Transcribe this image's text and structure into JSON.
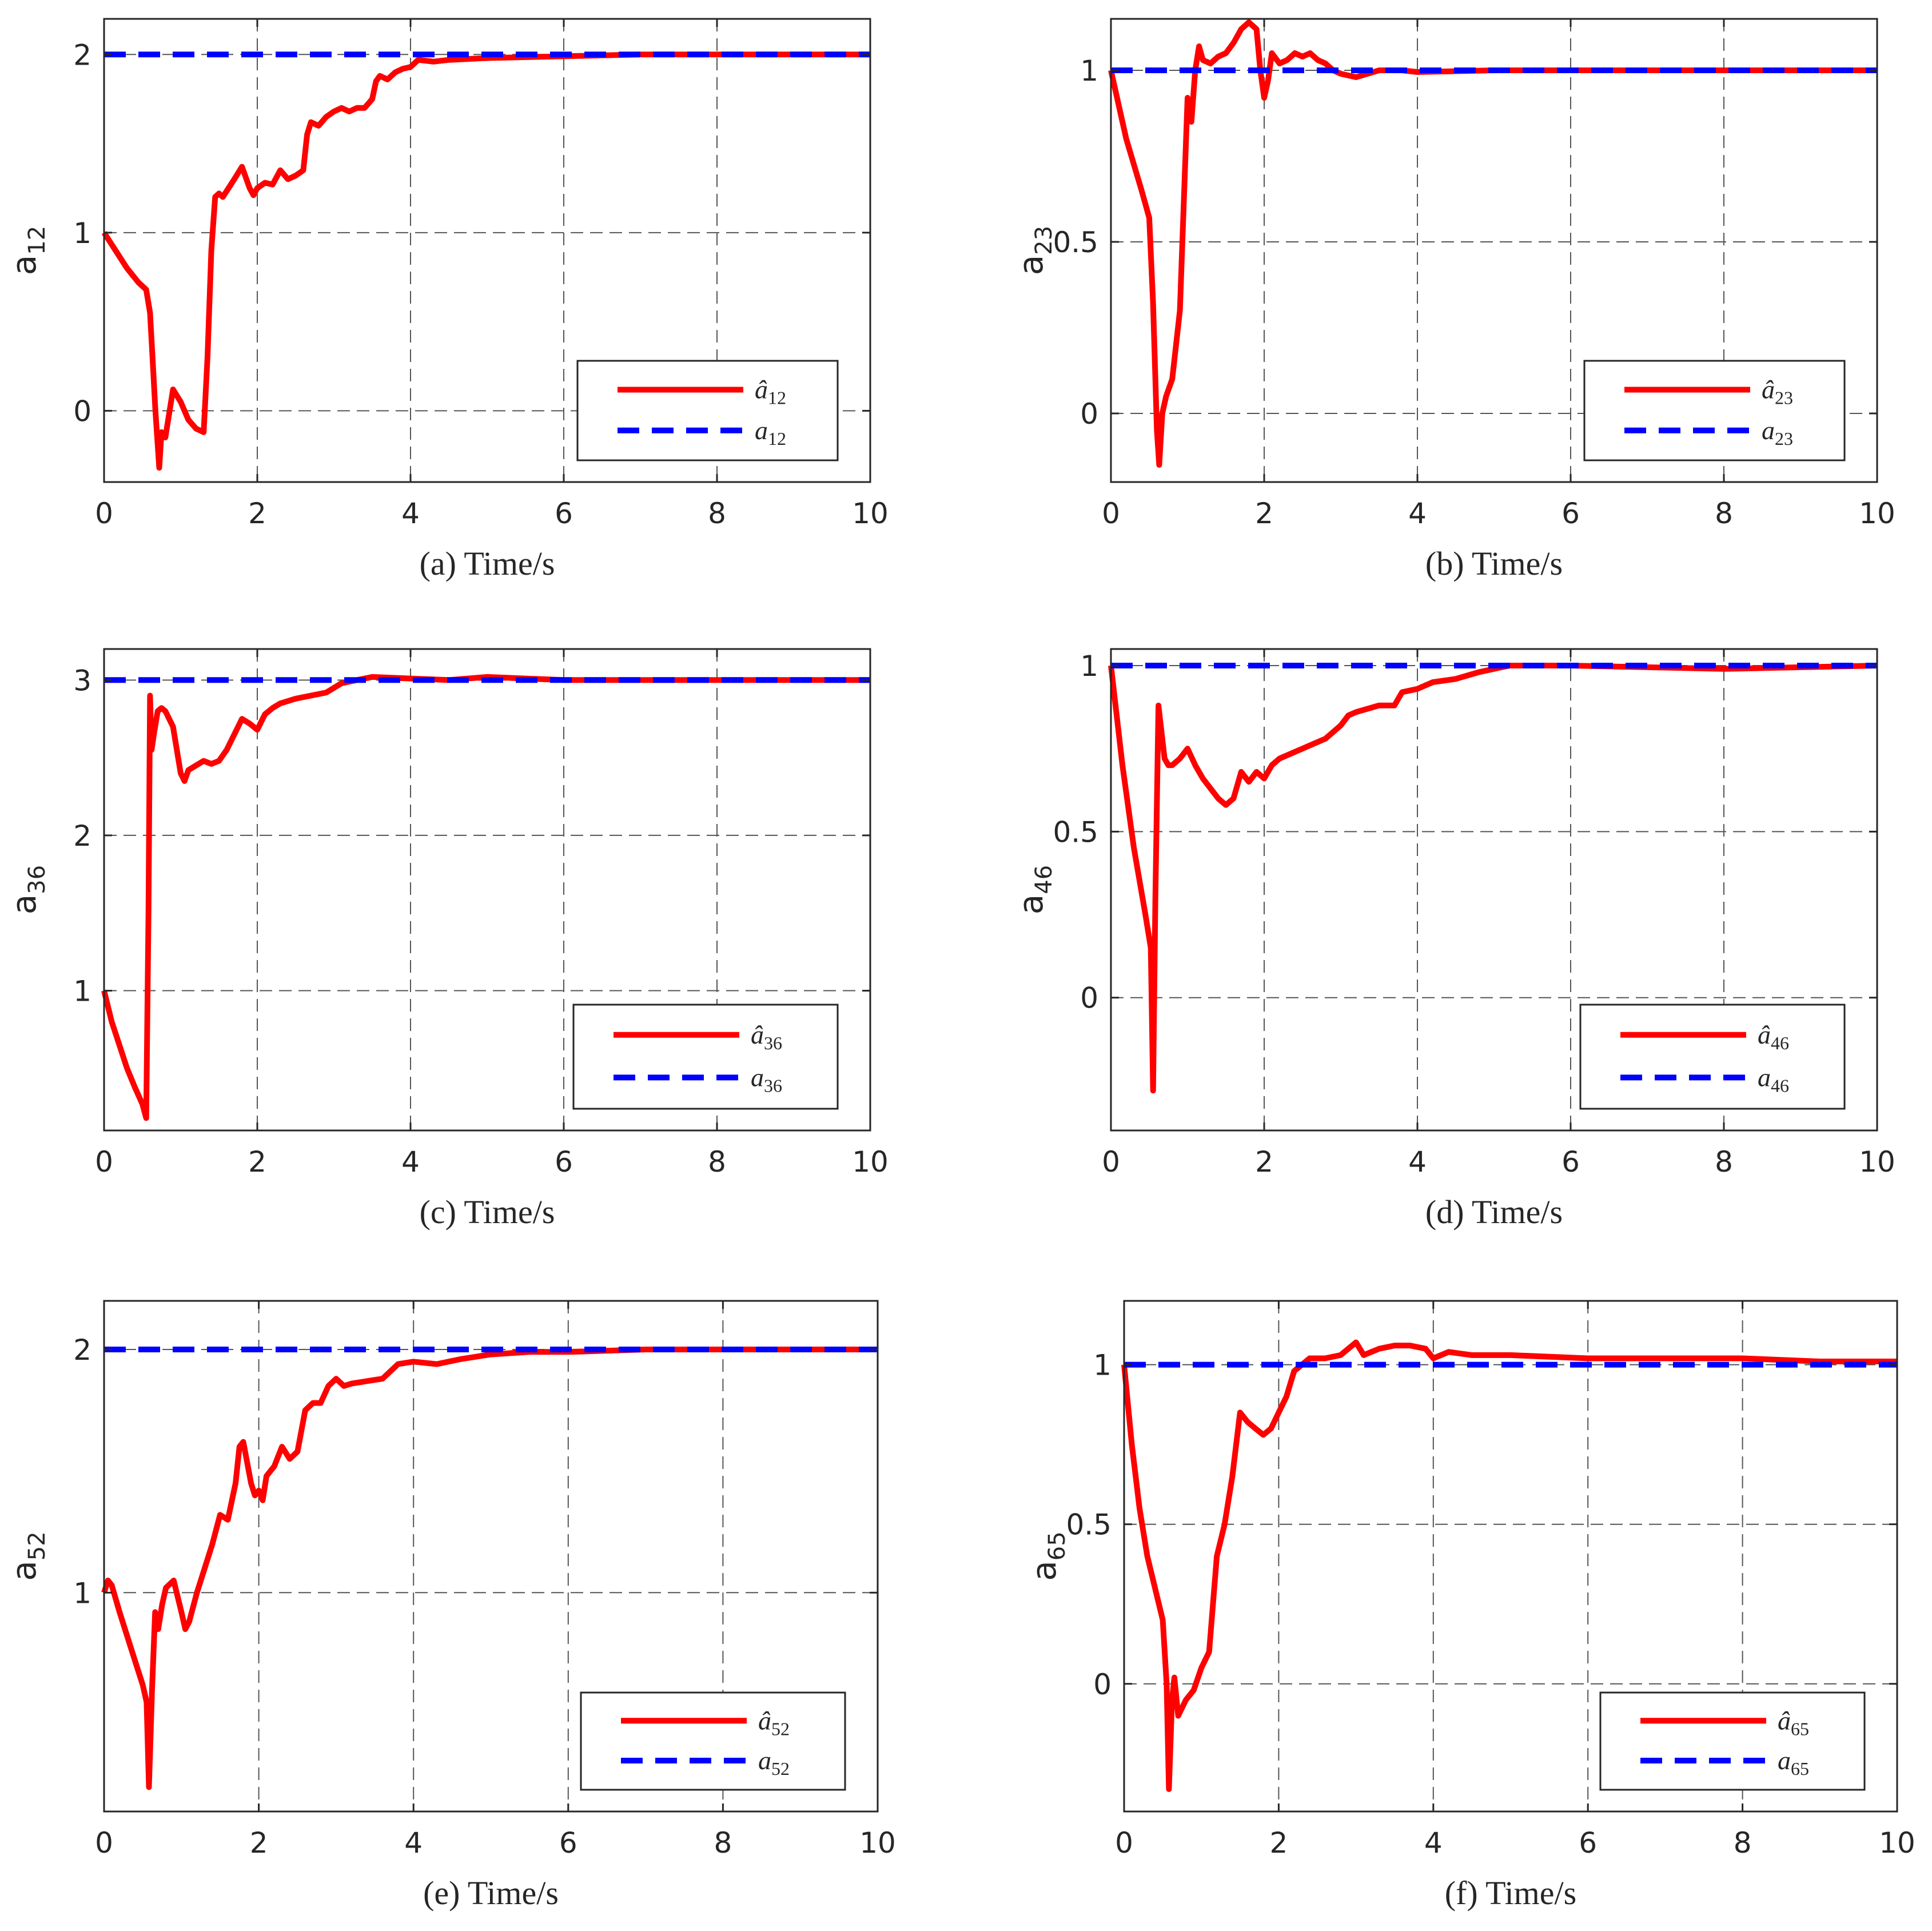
{
  "chart_data": [
    {
      "type": "line",
      "caption": "(a) Time/s",
      "ylabel": "a",
      "ylabel_sub": "12",
      "xlim": [
        0,
        10
      ],
      "ylim": [
        -0.4,
        2.2
      ],
      "xticks": [
        0,
        2,
        4,
        6,
        8,
        10
      ],
      "yticks": [
        0,
        1,
        2
      ],
      "grid": true,
      "legend_position": "lower-right",
      "series": [
        {
          "name": "â12",
          "legend_main": "â",
          "legend_sub": "12",
          "style": "solid",
          "color": "#ff0000",
          "x": [
            0,
            0.15,
            0.3,
            0.45,
            0.55,
            0.6,
            0.63,
            0.67,
            0.72,
            0.75,
            0.8,
            0.9,
            1.0,
            1.1,
            1.2,
            1.3,
            1.35,
            1.4,
            1.45,
            1.5,
            1.55,
            1.7,
            1.8,
            1.9,
            1.95,
            2.0,
            2.1,
            2.2,
            2.3,
            2.4,
            2.5,
            2.6,
            2.65,
            2.7,
            2.8,
            2.9,
            3.0,
            3.1,
            3.2,
            3.3,
            3.4,
            3.5,
            3.55,
            3.6,
            3.7,
            3.8,
            3.9,
            4.0,
            4.1,
            4.3,
            4.5,
            5,
            6,
            7,
            8,
            9,
            10
          ],
          "y": [
            1.0,
            0.9,
            0.8,
            0.72,
            0.68,
            0.55,
            0.32,
            0.0,
            -0.32,
            -0.12,
            -0.15,
            0.12,
            0.05,
            -0.05,
            -0.1,
            -0.12,
            0.3,
            0.9,
            1.2,
            1.22,
            1.2,
            1.3,
            1.37,
            1.25,
            1.21,
            1.25,
            1.28,
            1.27,
            1.35,
            1.3,
            1.32,
            1.35,
            1.55,
            1.62,
            1.6,
            1.65,
            1.68,
            1.7,
            1.68,
            1.7,
            1.7,
            1.75,
            1.85,
            1.88,
            1.86,
            1.9,
            1.92,
            1.93,
            1.97,
            1.96,
            1.97,
            1.98,
            1.99,
            2.0,
            2.0,
            2.0,
            2.0
          ]
        },
        {
          "name": "a12",
          "legend_main": "a",
          "legend_sub": "12",
          "style": "dashed",
          "color": "#0000ff",
          "x": [
            0,
            10
          ],
          "y": [
            2,
            2
          ]
        }
      ]
    },
    {
      "type": "line",
      "caption": "(b) Time/s",
      "ylabel": "a",
      "ylabel_sub": "23",
      "xlim": [
        0,
        10
      ],
      "ylim": [
        -0.2,
        1.15
      ],
      "xticks": [
        0,
        2,
        4,
        6,
        8,
        10
      ],
      "yticks": [
        0,
        0.5,
        1
      ],
      "grid": true,
      "legend_position": "lower-right",
      "series": [
        {
          "name": "â23",
          "legend_main": "â",
          "legend_sub": "23",
          "style": "solid",
          "color": "#ff0000",
          "x": [
            0,
            0.2,
            0.4,
            0.5,
            0.55,
            0.58,
            0.6,
            0.63,
            0.67,
            0.72,
            0.8,
            0.9,
            1.0,
            1.05,
            1.1,
            1.15,
            1.2,
            1.3,
            1.4,
            1.5,
            1.6,
            1.7,
            1.8,
            1.9,
            1.95,
            2.0,
            2.05,
            2.1,
            2.2,
            2.3,
            2.4,
            2.5,
            2.6,
            2.7,
            2.8,
            2.9,
            3.0,
            3.2,
            3.5,
            3.8,
            4.0,
            5,
            6,
            7,
            8,
            9,
            10
          ],
          "y": [
            1.0,
            0.8,
            0.65,
            0.57,
            0.32,
            0.1,
            -0.05,
            -0.15,
            0.0,
            0.05,
            0.1,
            0.3,
            0.92,
            0.85,
            1.0,
            1.07,
            1.03,
            1.02,
            1.04,
            1.05,
            1.08,
            1.12,
            1.14,
            1.12,
            1.0,
            0.92,
            0.97,
            1.05,
            1.02,
            1.03,
            1.05,
            1.04,
            1.05,
            1.03,
            1.02,
            1.0,
            0.99,
            0.98,
            1.0,
            1.0,
            0.995,
            1.0,
            1.0,
            1.0,
            1.0,
            1.0,
            1.0
          ]
        },
        {
          "name": "a23",
          "legend_main": "a",
          "legend_sub": "23",
          "style": "dashed",
          "color": "#0000ff",
          "x": [
            0,
            10
          ],
          "y": [
            1,
            1
          ]
        }
      ]
    },
    {
      "type": "line",
      "caption": "(c) Time/s",
      "ylabel": "a",
      "ylabel_sub": "36",
      "xlim": [
        0,
        10
      ],
      "ylim": [
        0.1,
        3.2
      ],
      "xticks": [
        0,
        2,
        4,
        6,
        8,
        10
      ],
      "yticks": [
        1,
        2,
        3
      ],
      "grid": true,
      "legend_position": "lower-right",
      "series": [
        {
          "name": "â36",
          "legend_main": "â",
          "legend_sub": "36",
          "style": "solid",
          "color": "#ff0000",
          "x": [
            0,
            0.1,
            0.2,
            0.3,
            0.4,
            0.5,
            0.55,
            0.58,
            0.6,
            0.62,
            0.65,
            0.7,
            0.75,
            0.8,
            0.9,
            1.0,
            1.05,
            1.1,
            1.2,
            1.3,
            1.4,
            1.5,
            1.6,
            1.7,
            1.8,
            1.9,
            2.0,
            2.1,
            2.2,
            2.3,
            2.5,
            2.7,
            2.9,
            3.1,
            3.3,
            3.5,
            4.0,
            4.5,
            5.0,
            5.5,
            6,
            7,
            8,
            9,
            10
          ],
          "y": [
            1.0,
            0.8,
            0.65,
            0.5,
            0.38,
            0.27,
            0.18,
            1.5,
            2.9,
            2.55,
            2.65,
            2.8,
            2.82,
            2.8,
            2.7,
            2.4,
            2.35,
            2.42,
            2.45,
            2.48,
            2.46,
            2.48,
            2.55,
            2.65,
            2.75,
            2.72,
            2.68,
            2.78,
            2.82,
            2.85,
            2.88,
            2.9,
            2.92,
            2.98,
            3.0,
            3.02,
            3.01,
            3.0,
            3.02,
            3.01,
            3.0,
            3.0,
            3.0,
            3.0,
            3.0
          ]
        },
        {
          "name": "a36",
          "legend_main": "a",
          "legend_sub": "36",
          "style": "dashed",
          "color": "#0000ff",
          "x": [
            0,
            10
          ],
          "y": [
            3,
            3
          ]
        }
      ]
    },
    {
      "type": "line",
      "caption": "(d) Time/s",
      "ylabel": "a",
      "ylabel_sub": "46",
      "xlim": [
        0,
        10
      ],
      "ylim": [
        -0.4,
        1.05
      ],
      "xticks": [
        0,
        2,
        4,
        6,
        8,
        10
      ],
      "yticks": [
        0,
        0.5,
        1
      ],
      "grid": true,
      "legend_position": "lower-right",
      "series": [
        {
          "name": "â46",
          "legend_main": "â",
          "legend_sub": "46",
          "style": "solid",
          "color": "#ff0000",
          "x": [
            0,
            0.15,
            0.3,
            0.45,
            0.52,
            0.55,
            0.58,
            0.62,
            0.65,
            0.7,
            0.75,
            0.8,
            0.9,
            1.0,
            1.1,
            1.2,
            1.3,
            1.4,
            1.5,
            1.6,
            1.7,
            1.8,
            1.9,
            2.0,
            2.1,
            2.2,
            2.4,
            2.6,
            2.8,
            3.0,
            3.1,
            3.2,
            3.5,
            3.7,
            3.8,
            4.0,
            4.2,
            4.5,
            4.8,
            5.0,
            5.2,
            5.5,
            6,
            7,
            8,
            9,
            10
          ],
          "y": [
            1.0,
            0.7,
            0.45,
            0.25,
            0.15,
            -0.28,
            0.3,
            0.88,
            0.82,
            0.72,
            0.7,
            0.7,
            0.72,
            0.75,
            0.7,
            0.66,
            0.63,
            0.6,
            0.58,
            0.6,
            0.68,
            0.65,
            0.68,
            0.66,
            0.7,
            0.72,
            0.74,
            0.76,
            0.78,
            0.82,
            0.85,
            0.86,
            0.88,
            0.88,
            0.92,
            0.93,
            0.95,
            0.96,
            0.98,
            0.99,
            1.0,
            1.0,
            1.0,
            0.995,
            0.99,
            0.995,
            1.0
          ]
        },
        {
          "name": "a46",
          "legend_main": "a",
          "legend_sub": "46",
          "style": "dashed",
          "color": "#0000ff",
          "x": [
            0,
            10
          ],
          "y": [
            1,
            1
          ]
        }
      ]
    },
    {
      "type": "line",
      "caption": "(e) Time/s",
      "ylabel": "a",
      "ylabel_sub": "52",
      "xlim": [
        0,
        10
      ],
      "ylim": [
        0.1,
        2.2
      ],
      "xticks": [
        0,
        2,
        4,
        6,
        8,
        10
      ],
      "yticks": [
        1,
        2
      ],
      "grid": true,
      "legend_position": "lower-right",
      "series": [
        {
          "name": "â52",
          "legend_main": "â",
          "legend_sub": "52",
          "style": "solid",
          "color": "#ff0000",
          "x": [
            0,
            0.05,
            0.1,
            0.2,
            0.3,
            0.4,
            0.5,
            0.55,
            0.58,
            0.62,
            0.66,
            0.7,
            0.75,
            0.8,
            0.9,
            1.0,
            1.05,
            1.1,
            1.2,
            1.3,
            1.4,
            1.5,
            1.6,
            1.7,
            1.75,
            1.8,
            1.9,
            1.95,
            2.0,
            2.05,
            2.1,
            2.2,
            2.3,
            2.4,
            2.5,
            2.6,
            2.7,
            2.8,
            2.9,
            3.0,
            3.1,
            3.2,
            3.4,
            3.6,
            3.8,
            4.0,
            4.3,
            4.6,
            5.0,
            5.5,
            6,
            7,
            8,
            9,
            10
          ],
          "y": [
            1.0,
            1.05,
            1.03,
            0.92,
            0.82,
            0.72,
            0.62,
            0.55,
            0.2,
            0.6,
            0.92,
            0.85,
            0.95,
            1.02,
            1.05,
            0.92,
            0.85,
            0.88,
            1.0,
            1.1,
            1.2,
            1.32,
            1.3,
            1.45,
            1.6,
            1.62,
            1.45,
            1.4,
            1.42,
            1.38,
            1.48,
            1.52,
            1.6,
            1.55,
            1.58,
            1.75,
            1.78,
            1.78,
            1.85,
            1.88,
            1.85,
            1.86,
            1.87,
            1.88,
            1.94,
            1.95,
            1.94,
            1.96,
            1.98,
            1.99,
            1.99,
            2.0,
            2.0,
            2.0,
            2.0
          ]
        },
        {
          "name": "a52",
          "legend_main": "a",
          "legend_sub": "52",
          "style": "dashed",
          "color": "#0000ff",
          "x": [
            0,
            10
          ],
          "y": [
            2,
            2
          ]
        }
      ]
    },
    {
      "type": "line",
      "caption": "(f) Time/s",
      "ylabel": "a",
      "ylabel_sub": "65",
      "xlim": [
        0,
        10
      ],
      "ylim": [
        -0.4,
        1.2
      ],
      "xticks": [
        0,
        2,
        4,
        6,
        8,
        10
      ],
      "yticks": [
        0,
        0.5,
        1
      ],
      "grid": true,
      "legend_position": "lower-right",
      "series": [
        {
          "name": "â65",
          "legend_main": "â",
          "legend_sub": "65",
          "style": "solid",
          "color": "#ff0000",
          "x": [
            0,
            0.1,
            0.2,
            0.3,
            0.4,
            0.5,
            0.55,
            0.58,
            0.62,
            0.65,
            0.7,
            0.8,
            0.9,
            1.0,
            1.1,
            1.2,
            1.3,
            1.4,
            1.5,
            1.6,
            1.7,
            1.8,
            1.9,
            2.0,
            2.1,
            2.2,
            2.3,
            2.4,
            2.6,
            2.8,
            3.0,
            3.1,
            3.2,
            3.3,
            3.5,
            3.7,
            3.9,
            4.0,
            4.2,
            4.5,
            5,
            6,
            7,
            8,
            9,
            10
          ],
          "y": [
            1.0,
            0.75,
            0.55,
            0.4,
            0.3,
            0.2,
            0.0,
            -0.33,
            -0.05,
            0.02,
            -0.1,
            -0.05,
            -0.02,
            0.05,
            0.1,
            0.4,
            0.5,
            0.65,
            0.85,
            0.82,
            0.8,
            0.78,
            0.8,
            0.85,
            0.9,
            0.98,
            1.0,
            1.02,
            1.02,
            1.03,
            1.07,
            1.03,
            1.04,
            1.05,
            1.06,
            1.06,
            1.05,
            1.02,
            1.04,
            1.03,
            1.03,
            1.02,
            1.02,
            1.02,
            1.01,
            1.01
          ]
        },
        {
          "name": "a65",
          "legend_main": "a",
          "legend_sub": "65",
          "style": "dashed",
          "color": "#0000ff",
          "x": [
            0,
            10
          ],
          "y": [
            1,
            1
          ]
        }
      ]
    }
  ]
}
